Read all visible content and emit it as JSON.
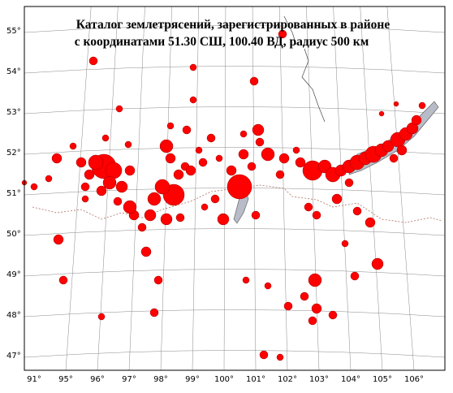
{
  "title": {
    "line1": "Каталог землетрясений, зарегистрированных в районе",
    "line2": "с координатами  51.30 СШ,  100.40 ВД, радиус 500 км"
  },
  "latitude_labels": [
    "55°",
    "54°",
    "53°",
    "52°",
    "51°",
    "50°",
    "49°",
    "48°",
    "47°"
  ],
  "longitude_labels": [
    "91°",
    "95°",
    "96°",
    "97°",
    "98°",
    "99°",
    "100°",
    "101°",
    "102°",
    "103°",
    "104°",
    "105°",
    "106°"
  ]
}
